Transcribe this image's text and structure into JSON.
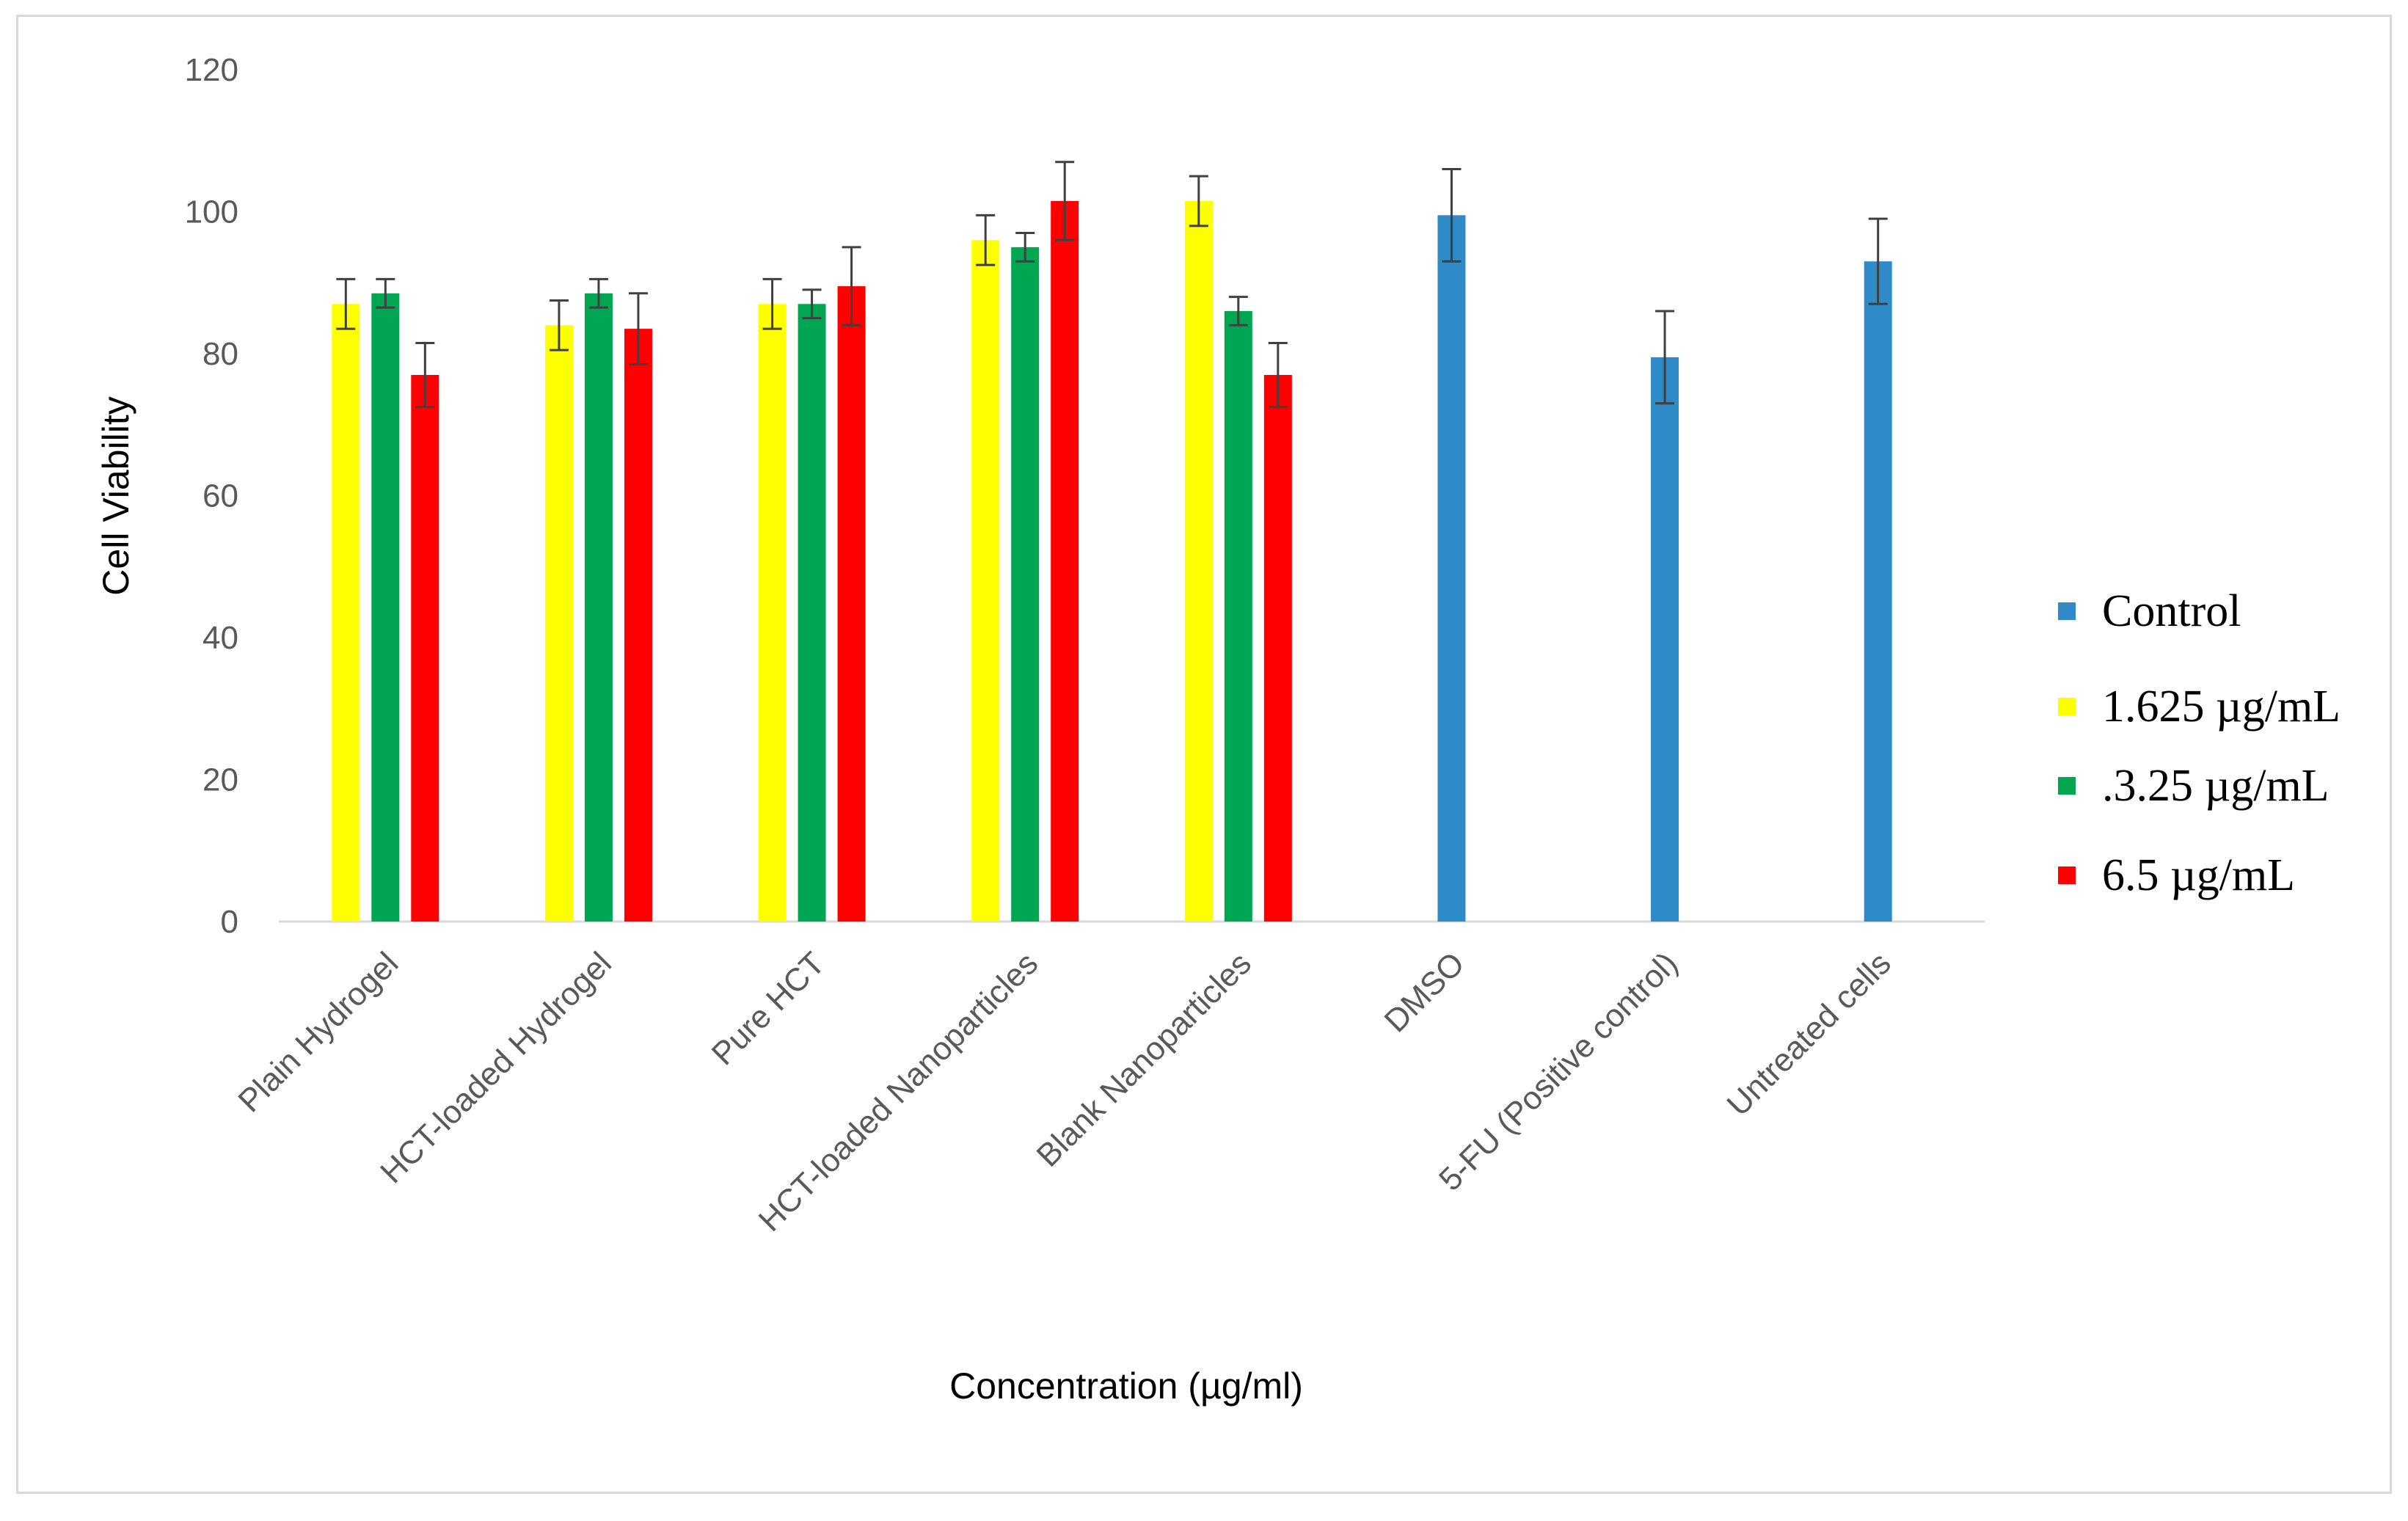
{
  "chart_data": {
    "type": "bar",
    "xlabel": "Concentration (µg/ml)",
    "ylabel": "Cell Viability",
    "ylim": [
      0,
      120
    ],
    "yticks": [
      0,
      20,
      40,
      60,
      80,
      100,
      120
    ],
    "grid": false,
    "legend_position": "right",
    "categories": [
      "Plain Hydrogel",
      "HCT-loaded Hydrogel",
      "Pure HCT",
      "HCT-loaded Nanoparticles",
      "Blank Nanoparticles",
      "DMSO",
      "5-FU (Positive control)",
      "Untreated cells"
    ],
    "series": [
      {
        "name": "Control",
        "color": "#2e8bc7",
        "values": [
          null,
          null,
          null,
          null,
          null,
          99.5,
          79.5,
          93
        ],
        "errors": [
          null,
          null,
          null,
          null,
          null,
          6.5,
          6.5,
          6
        ]
      },
      {
        "name": "1.625 µg/mL",
        "color": "#ffff00",
        "values": [
          87,
          84,
          87,
          96,
          101.5,
          null,
          null,
          null
        ],
        "errors": [
          3.5,
          3.5,
          3.5,
          3.5,
          3.5,
          null,
          null,
          null
        ]
      },
      {
        "name": ".3.25 µg/mL",
        "color": "#00a651",
        "values": [
          88.5,
          88.5,
          87,
          95,
          86,
          null,
          null,
          null
        ],
        "errors": [
          2,
          2,
          2,
          2,
          2,
          null,
          null,
          null
        ]
      },
      {
        "name": "6.5 µg/mL",
        "color": "#ff0000",
        "values": [
          77,
          83.5,
          89.5,
          101.5,
          77,
          null,
          null,
          null
        ],
        "errors": [
          4.5,
          5,
          5.5,
          5.5,
          4.5,
          null,
          null,
          null
        ]
      }
    ]
  }
}
